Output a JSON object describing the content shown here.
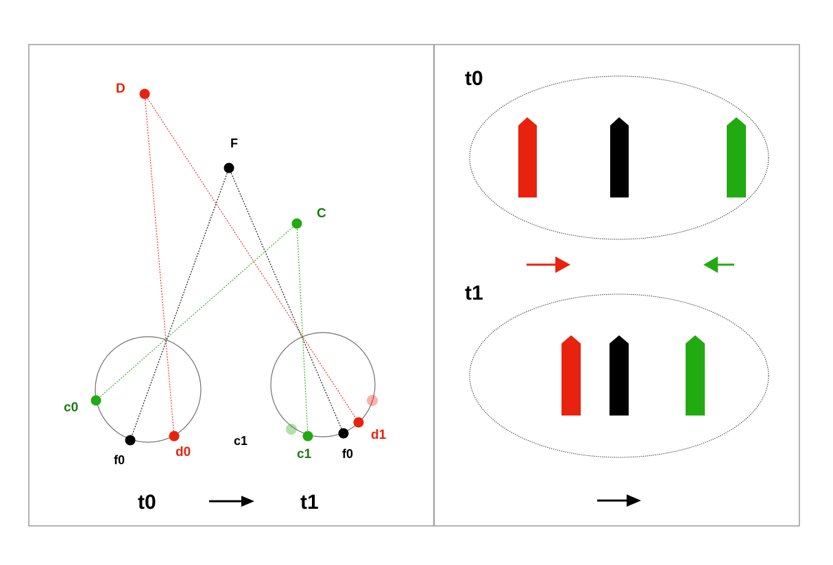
{
  "colors": {
    "red": "#e8220f",
    "green": "#22aa12",
    "green_text": "#1d7a12",
    "black": "#000000",
    "frame": "#9a9a9a"
  },
  "left_panel": {
    "points": {
      "D": "D",
      "F": "F",
      "C": "C"
    },
    "circle_t0": {
      "c0": "c0",
      "f0": "f0",
      "d0": "d0"
    },
    "stray_label": "c1",
    "circle_t1": {
      "c1": "c1",
      "f0": "f0",
      "d1": "d1"
    },
    "timeline": {
      "start": "t0",
      "end": "t1"
    }
  },
  "right_panel": {
    "t0": {
      "label": "t0",
      "markers": [
        "red",
        "black",
        "green"
      ]
    },
    "t1": {
      "label": "t1",
      "markers": [
        "red",
        "black",
        "green"
      ]
    },
    "motion_arrows": [
      "red-right",
      "green-left"
    ],
    "bottom_arrow": "black-right"
  }
}
